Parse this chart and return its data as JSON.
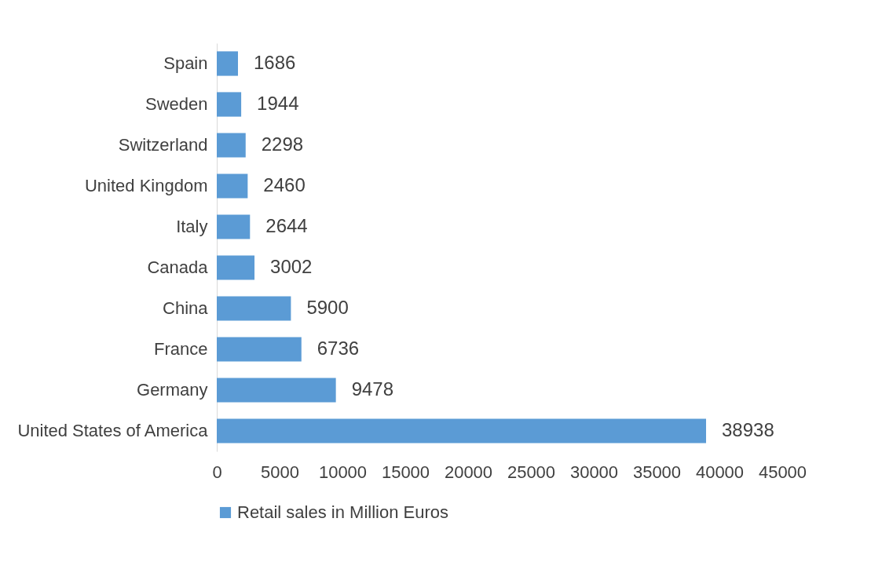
{
  "chart_data": {
    "type": "bar",
    "orientation": "horizontal",
    "categories": [
      "Spain",
      "Sweden",
      "Switzerland",
      "United Kingdom",
      "Italy",
      "Canada",
      "China",
      "France",
      "Germany",
      "United States of America"
    ],
    "series": [
      {
        "name": "Retail sales in Million Euros",
        "color": "#5b9bd5",
        "values": [
          1686,
          1944,
          2298,
          2460,
          2644,
          3002,
          5900,
          6736,
          9478,
          38938
        ]
      }
    ],
    "xlim": [
      0,
      45000
    ],
    "xticks": [
      0,
      5000,
      10000,
      15000,
      20000,
      25000,
      30000,
      35000,
      40000,
      45000
    ],
    "data_labels": true,
    "grid": false,
    "legend": "bottom"
  }
}
